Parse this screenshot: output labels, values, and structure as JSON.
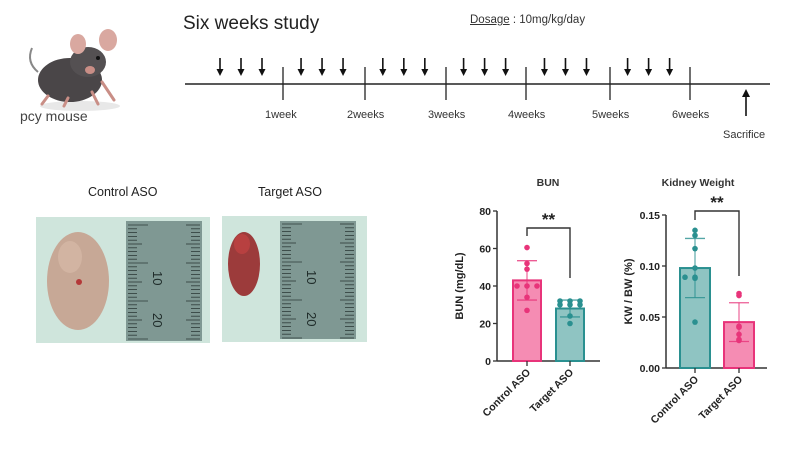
{
  "study": {
    "title": "Six weeks study",
    "dosage_label": "Dosage",
    "dosage_sep": " : ",
    "dosage_value": "10mg/kg/day",
    "animal_label": "pcy mouse",
    "timeline": {
      "weeks": [
        "1week",
        "2weeks",
        "3weeks",
        "4weeks",
        "5weeks",
        "6weeks"
      ],
      "doses_per_week": 3,
      "end_event": "Sacrifice"
    }
  },
  "photos": {
    "control_label": "Control ASO",
    "target_label": "Target ASO",
    "ruler_marks": [
      "10",
      "20"
    ]
  },
  "chart_data": [
    {
      "type": "bar",
      "title": "BUN",
      "xlabel": "",
      "ylabel": "BUN (mg/dL)",
      "ylim": [
        0,
        80
      ],
      "yticks": [
        "0",
        "20",
        "40",
        "60",
        "80"
      ],
      "ytick_values": [
        0,
        20,
        40,
        60,
        80
      ],
      "categories": [
        "Control ASO",
        "Target ASO"
      ],
      "values": [
        43,
        28
      ],
      "sd": [
        10.5,
        4.5
      ],
      "colors": [
        "#e8347a",
        "#2a9090"
      ],
      "fills": [
        "#f58cb3",
        "#8fc4c2"
      ],
      "points": [
        [
          60.5,
          52,
          49,
          40,
          40,
          40,
          34,
          27
        ],
        [
          32,
          32,
          32,
          30,
          30,
          30,
          24,
          20
        ]
      ],
      "significance": "**"
    },
    {
      "type": "bar",
      "title": "Kidney Weight",
      "xlabel": "",
      "ylabel": "KW / BW (%)",
      "ylim": [
        0,
        0.15
      ],
      "yticks": [
        "0.00",
        "0.05",
        "0.10",
        "0.15"
      ],
      "ytick_values": [
        0,
        0.05,
        0.1,
        0.15
      ],
      "categories": [
        "Control ASO",
        "Target ASO"
      ],
      "values": [
        0.098,
        0.045
      ],
      "sd": [
        0.029,
        0.019
      ],
      "colors": [
        "#2a9090",
        "#e8347a"
      ],
      "fills": [
        "#8fc4c2",
        "#f58cb3"
      ],
      "points": [
        [
          0.135,
          0.13,
          0.117,
          0.098,
          0.089,
          0.089,
          0.088,
          0.045
        ],
        [
          0.073,
          0.071,
          0.041,
          0.04,
          0.033,
          0.028,
          0.027
        ]
      ],
      "significance": "**"
    }
  ]
}
